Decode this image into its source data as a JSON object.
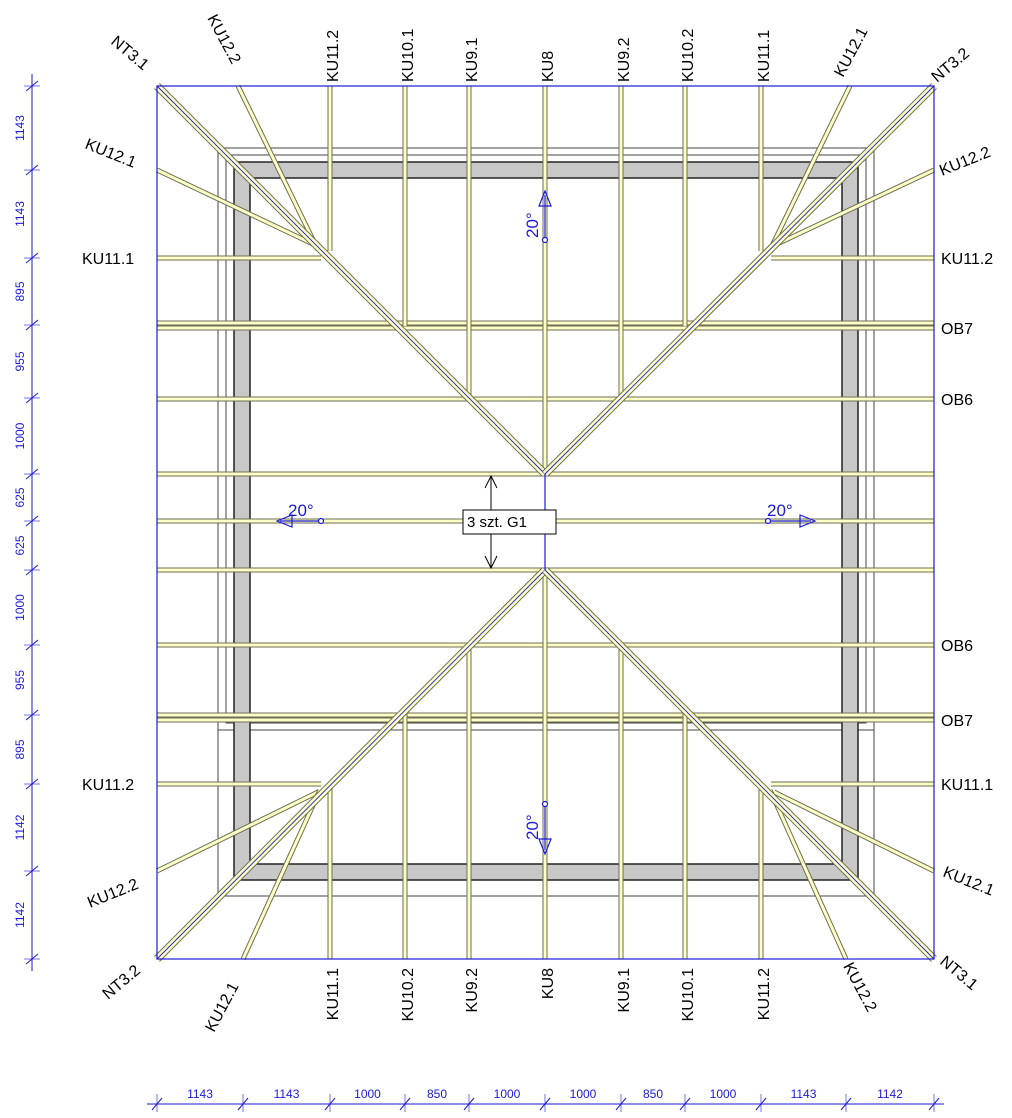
{
  "colors": {
    "outline": "#1a1ad6",
    "rafter_fill": "#ffffc8",
    "rafter_edge": "#6e6e54",
    "wall_fill": "#c8c8c8",
    "wall_edge": "#222222"
  },
  "labels": {
    "top": [
      "KU12.2",
      "KU11.2",
      "KU10.1",
      "KU9.1",
      "KU8",
      "KU9.2",
      "KU10.2",
      "KU11.1",
      "KU12.1"
    ],
    "bottom": [
      "KU12.1",
      "KU11.1",
      "KU10.2",
      "KU9.2",
      "KU8",
      "KU9.1",
      "KU10.1",
      "KU11.2",
      "KU12.2"
    ],
    "corners": {
      "top_left": "NT3.1",
      "top_right": "NT3.2",
      "bottom_left": "NT3.2",
      "bottom_right": "NT3.1"
    },
    "left": [
      "KU12.1",
      "KU11.1",
      "KU11.2",
      "KU12.2"
    ],
    "right": [
      "KU12.2",
      "KU11.2",
      "OB7",
      "OB6",
      "OB6",
      "OB7",
      "KU11.1",
      "KU12.1"
    ]
  },
  "dimensions": {
    "vertical": [
      "1143",
      "1143",
      "895",
      "955",
      "1000",
      "625",
      "625",
      "1000",
      "955",
      "895",
      "1142",
      "1142"
    ],
    "horizontal": [
      "1143",
      "1143",
      "1000",
      "850",
      "1000",
      "1000",
      "850",
      "1000",
      "1143",
      "1142"
    ]
  },
  "slope_labels": {
    "top": "20°",
    "bottom": "20°",
    "left": "20°",
    "right": "20°"
  },
  "center_label": "3 szt. G1"
}
